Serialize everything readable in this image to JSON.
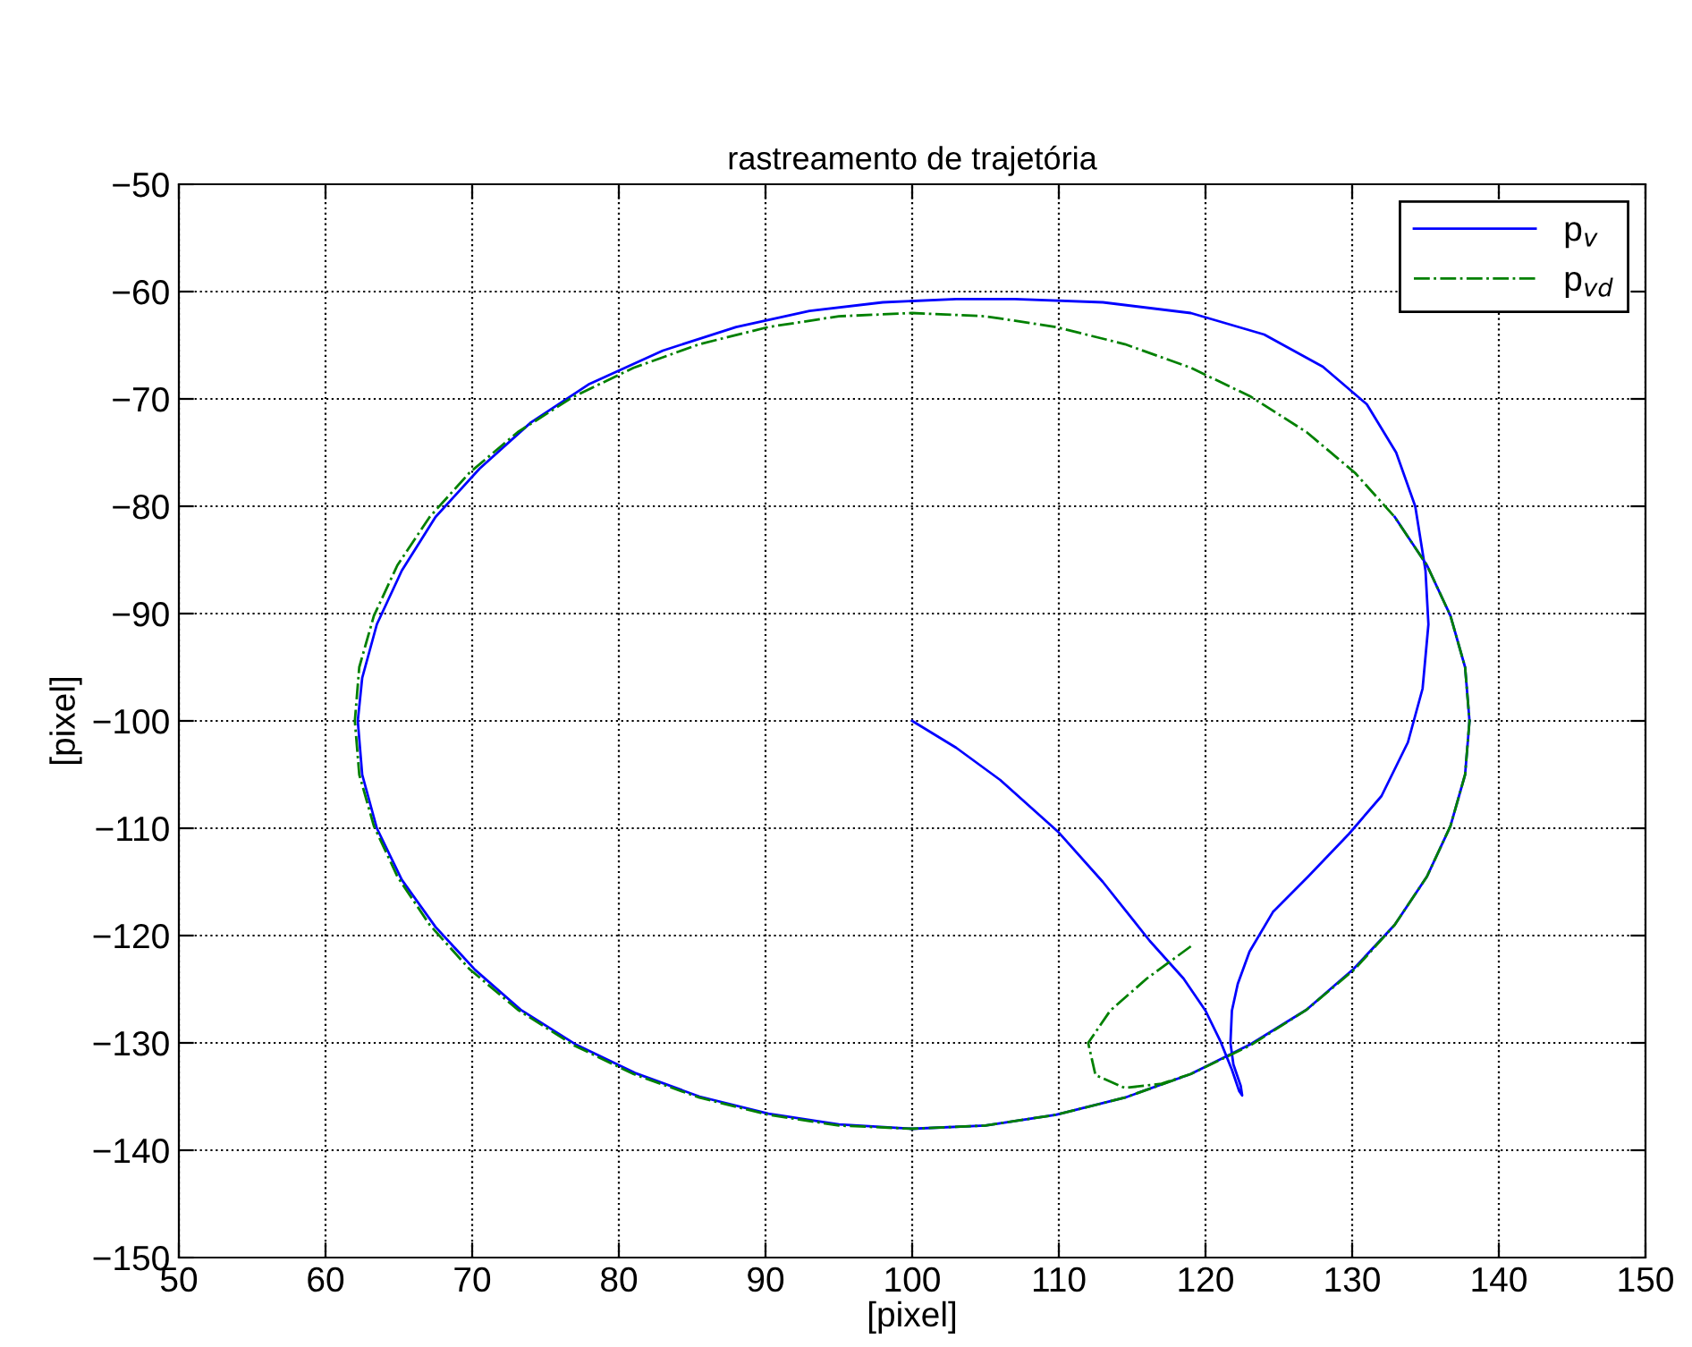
{
  "chart_data": {
    "type": "line",
    "title": "rastreamento de trajetória",
    "xlabel": "[pixel]",
    "ylabel": "[pixel]",
    "xlim": [
      50,
      150
    ],
    "ylim": [
      -150,
      -50
    ],
    "xticks": [
      50,
      60,
      70,
      80,
      90,
      100,
      110,
      120,
      130,
      140,
      150
    ],
    "yticks": [
      -150,
      -140,
      -130,
      -120,
      -110,
      -100,
      -90,
      -80,
      -70,
      -60,
      -50
    ],
    "grid": true,
    "legend": "top right",
    "marker": "none",
    "series": [
      {
        "name": "p$_{v}$",
        "color": "#0000ff",
        "line_style": "solid",
        "x": [
          100,
          103,
          106,
          110,
          113,
          116.2,
          118.5,
          120,
          121,
          121.8,
          122.3,
          122.5,
          122.4,
          121.9,
          121.7,
          121.8,
          122.2,
          123,
          124.6,
          127,
          129.8,
          132,
          133.8,
          134.8,
          135.2,
          135,
          134.3,
          133,
          131,
          128,
          124,
          119,
          113,
          107,
          103,
          98,
          93,
          88,
          83,
          78,
          74,
          70.5,
          67.5,
          65.2,
          63.5,
          62.5,
          62.2,
          62.5,
          63.5,
          65.2,
          67.5,
          70.2,
          73.3,
          77,
          81.1,
          85.5,
          90.2,
          95,
          100,
          105,
          109.8,
          114.5,
          119,
          123.1,
          126.9,
          130.1,
          132.9,
          135.1,
          136.7,
          137.7,
          138,
          137.7,
          136.7,
          135.1,
          132.9
        ],
        "values": [
          -100,
          -102.5,
          -105.5,
          -110.4,
          -115,
          -120.5,
          -124,
          -127,
          -129.8,
          -132.5,
          -134.5,
          -134.9,
          -134,
          -132,
          -130,
          -127,
          -124.5,
          -121.5,
          -117.8,
          -114.5,
          -110.5,
          -107,
          -102,
          -97,
          -91,
          -86,
          -80,
          -75,
          -70.5,
          -67,
          -64,
          -62,
          -61,
          -60.7,
          -60.7,
          -61,
          -61.8,
          -63.3,
          -65.5,
          -68.6,
          -72.2,
          -76.5,
          -81,
          -86,
          -91,
          -96,
          -100,
          -105,
          -110,
          -114.8,
          -119.2,
          -123.2,
          -126.9,
          -130.1,
          -132.8,
          -135,
          -136.6,
          -137.6,
          -138,
          -137.7,
          -136.7,
          -135.1,
          -132.9,
          -130.1,
          -126.9,
          -123.1,
          -119,
          -114.5,
          -109.8,
          -105,
          -100,
          -95,
          -90.2,
          -85.5,
          -81
        ]
      },
      {
        "name": "p$_{vd}$",
        "color": "#008000",
        "line_style": "dashdot",
        "x": [
          119,
          116,
          113.5,
          112,
          112.5,
          114.5,
          117,
          119,
          123.1,
          126.9,
          130.2,
          132.9,
          135.1,
          136.7,
          137.7,
          138,
          137.7,
          136.7,
          135.1,
          132.9,
          130.2,
          126.9,
          123.1,
          119,
          114.5,
          109.8,
          105,
          100,
          95,
          90.2,
          85.5,
          81,
          76.9,
          73.1,
          69.8,
          67.1,
          64.9,
          63.3,
          62.3,
          62,
          62.3,
          63.3,
          64.9,
          67.1,
          69.8,
          73.1,
          76.9,
          81,
          85.5,
          90.2,
          95,
          100,
          105,
          109.8,
          114.5,
          119
        ],
        "values": [
          -121,
          -124,
          -127,
          -130,
          -133,
          -134.2,
          -133.8,
          -132.9,
          -130.2,
          -126.9,
          -123.1,
          -119,
          -114.5,
          -109.8,
          -105,
          -100,
          -95,
          -90.2,
          -85.5,
          -81,
          -76.9,
          -73.1,
          -69.8,
          -67.1,
          -64.9,
          -63.3,
          -62.3,
          -62,
          -62.3,
          -63.3,
          -64.9,
          -67.1,
          -69.8,
          -73.1,
          -76.9,
          -81,
          -85.5,
          -90.2,
          -95,
          -100,
          -105,
          -109.8,
          -114.5,
          -119,
          -123.1,
          -126.9,
          -130.2,
          -132.9,
          -135.1,
          -136.7,
          -137.7,
          -138,
          -137.7,
          -136.7,
          -135.1,
          -132.9
        ]
      }
    ]
  }
}
